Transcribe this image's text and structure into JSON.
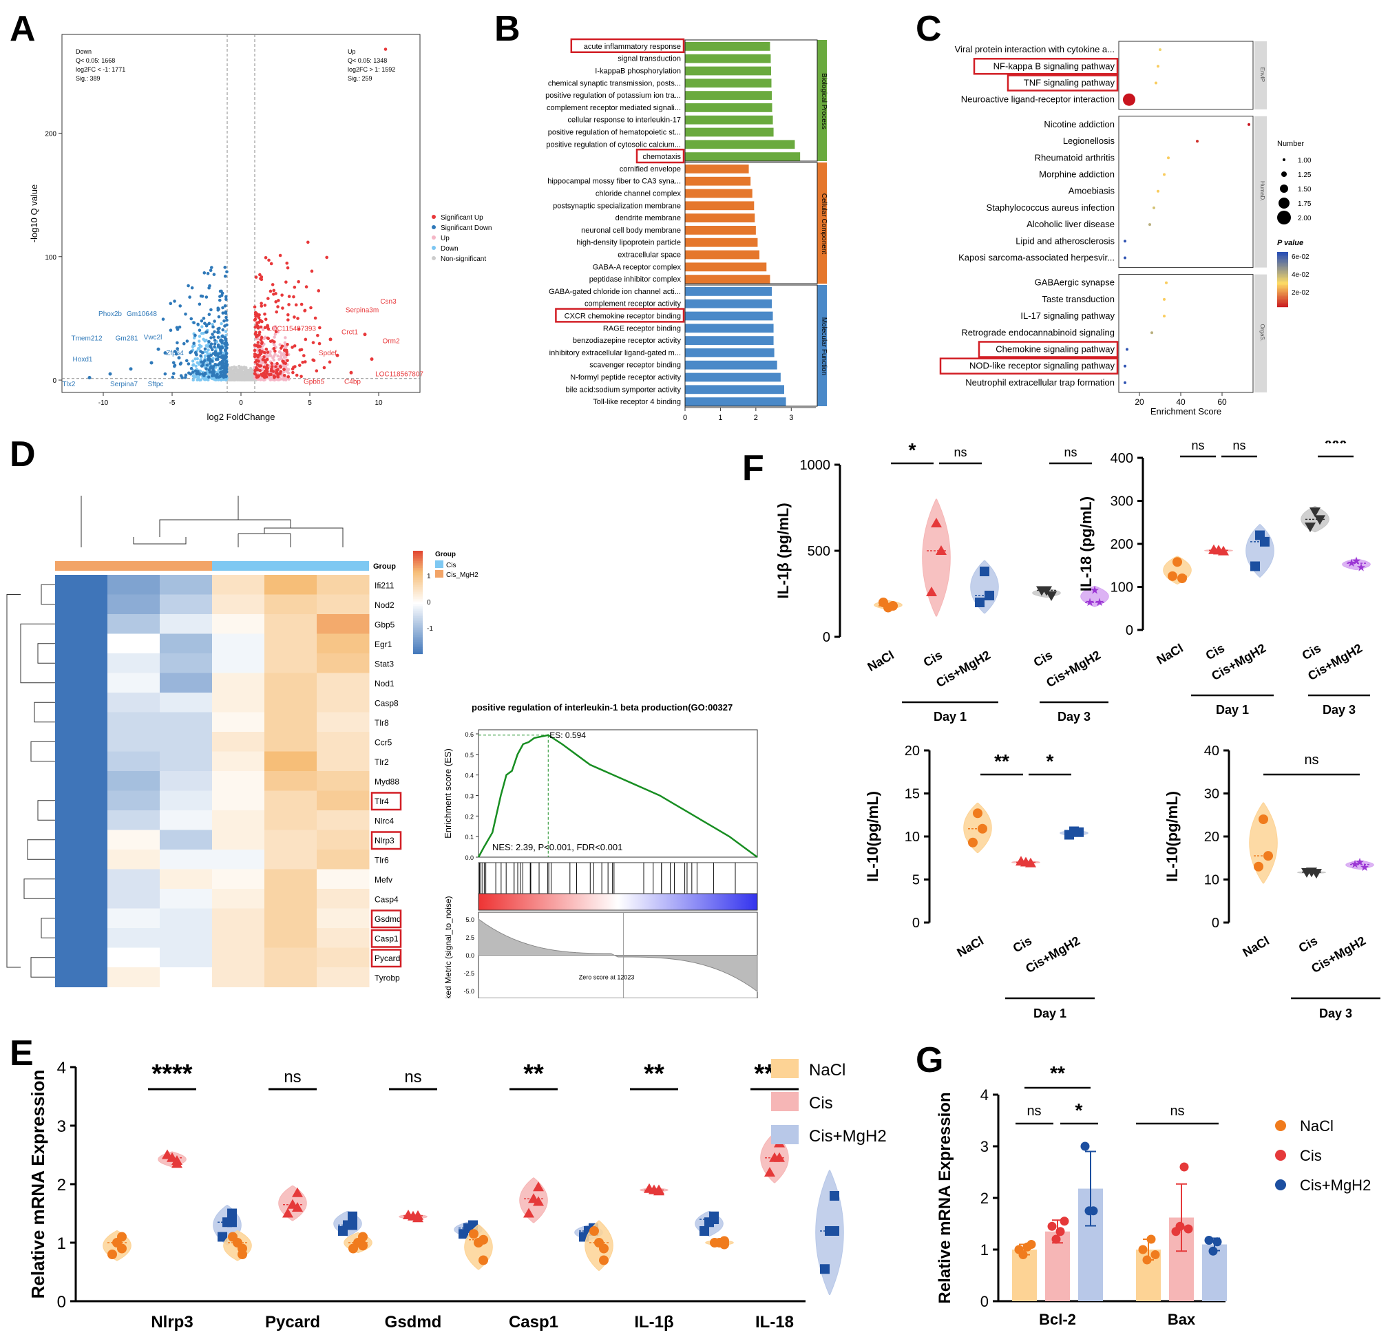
{
  "panels": {
    "A": "A",
    "B": "B",
    "C": "C",
    "D": "D",
    "E": "E",
    "F": "F",
    "G": "G"
  },
  "colors": {
    "up": "#e8383a",
    "down": "#2f79b9",
    "upLight": "#f4b6c6",
    "downLight": "#7cc6f2",
    "ns": "#cccccc",
    "bp": "#6aaa3e",
    "cc": "#e5772c",
    "mf": "#4a89c8",
    "naclFill": "#fdd395",
    "naclDot": "#f07b1d",
    "cisFill": "#f6b6b6",
    "cisDot": "#e5393a",
    "mghFill": "#b8c8e8",
    "mghDot": "#1c4fa0",
    "mgh3Fill": "#d6a6f2",
    "mgh3Dot": "#9b36d4",
    "highlight": "#d21e25"
  },
  "chart_data": [
    {
      "type": "scatter",
      "name": "A volcano",
      "xlabel": "log2 FoldChange",
      "ylabel": "-log10 Q value",
      "xlim": [
        -13,
        13
      ],
      "ylim": [
        -10,
        280
      ],
      "xticks": [
        -10,
        -5,
        0,
        5,
        10
      ],
      "yticks": [
        0,
        100,
        200
      ],
      "down_text": [
        "Down",
        "Q< 0.05: 1668",
        "log2FC < -1: 1771",
        "Sig.: 389"
      ],
      "up_text": [
        "Up",
        "Q< 0.05: 1348",
        "log2FC > 1: 1592",
        "Sig.: 259"
      ],
      "legend": [
        "Significant Up",
        "Significant Down",
        "Up",
        "Down",
        "Non-significant"
      ],
      "down_labels": [
        "Phox2b",
        "Gm10648",
        "Tmem212",
        "Gm281",
        "Vwc2l",
        "Hoxd1",
        "Zfp64",
        "Tlx2",
        "Serpina7",
        "Sftpc"
      ],
      "up_labels": [
        "Csn3",
        "Serpina3m",
        "Orm2",
        "LOC115487393",
        "Crct1",
        "Spdef",
        "LOC118567807",
        "Gpbb5",
        "C4bp"
      ],
      "highlight_points": [
        [
          -11,
          2
        ],
        [
          -9.5,
          5
        ],
        [
          -8,
          9
        ],
        [
          -6.5,
          14
        ],
        [
          -6,
          25
        ],
        [
          -5.5,
          22
        ],
        [
          -4.5,
          18
        ],
        [
          -3,
          5
        ],
        [
          6.5,
          33
        ],
        [
          7,
          20
        ],
        [
          9,
          37
        ],
        [
          9.5,
          17
        ],
        [
          8,
          6
        ]
      ]
    },
    {
      "type": "bar",
      "name": "B GO enrichment",
      "xlabel": "-log10 P value",
      "xlim": [
        0,
        3.5
      ],
      "xticks": [
        0,
        1,
        2,
        3
      ],
      "groups": [
        "Biological Process",
        "Cellular Component",
        "Molecular Function"
      ],
      "categories": [
        "acute inflammatory response",
        "signal transduction",
        "I-kappaB phosphorylation",
        "chemical synaptic transmission, posts...",
        "positive regulation of potassium ion tra...",
        "complement receptor mediated signali...",
        "cellular response to interleukin-17",
        "positive regulation of hematopoietic st...",
        "positive regulation of cytosolic calcium...",
        "chemotaxis",
        "cornified envelope",
        "hippocampal mossy fiber to CA3 syna...",
        "chloride channel complex",
        "postsynaptic specialization membrane",
        "dendrite membrane",
        "neuronal cell body membrane",
        "high-density lipoprotein particle",
        "extracellular space",
        "GABA-A receptor complex",
        "peptidase inhibitor complex",
        "GABA-gated chloride ion channel acti...",
        "complement receptor activity",
        "CXCR chemokine receptor binding",
        "RAGE receptor binding",
        "benzodiazepine receptor activity",
        "inhibitory extracellular ligand-gated m...",
        "scavenger receptor binding",
        "N-formyl peptide receptor activity",
        "bile acid:sodium symporter activity",
        "Toll-like receptor 4 binding"
      ],
      "values": [
        2.4,
        2.42,
        2.43,
        2.44,
        2.45,
        2.46,
        2.48,
        2.5,
        3.1,
        3.25,
        1.8,
        1.85,
        1.9,
        1.95,
        1.97,
        2.0,
        2.05,
        2.1,
        2.3,
        2.4,
        2.45,
        2.45,
        2.48,
        2.5,
        2.5,
        2.52,
        2.6,
        2.7,
        2.8,
        2.85
      ],
      "group_index": [
        0,
        0,
        0,
        0,
        0,
        0,
        0,
        0,
        0,
        0,
        1,
        1,
        1,
        1,
        1,
        1,
        1,
        1,
        1,
        1,
        2,
        2,
        2,
        2,
        2,
        2,
        2,
        2,
        2,
        2
      ],
      "highlighted": [
        0,
        9,
        22
      ]
    },
    {
      "type": "scatter",
      "name": "C KEGG enrichment",
      "xlabel": "Enrichment Score",
      "xticks": [
        20,
        40,
        60
      ],
      "xlim": [
        10,
        75
      ],
      "facets": [
        "EnvIP",
        "HumaD.",
        "OrgaS."
      ],
      "categories": [
        "Viral protein interaction with cytokine a...",
        "NF-kappa B signaling pathway",
        "TNF signaling pathway",
        "Neuroactive ligand-receptor interaction",
        "Nicotine addiction",
        "Legionellosis",
        "Rheumatoid arthritis",
        "Morphine addiction",
        "Amoebiasis",
        "Staphylococcus aureus infection",
        "Alcoholic liver disease",
        "Lipid and atherosclerosis",
        "Kaposi sarcoma-associated herpesvir...",
        "GABAergic synapse",
        "Taste transduction",
        "IL-17 signaling pathway",
        "Retrograde endocannabinoid signaling",
        "Chemokine signaling pathway",
        "NOD-like receptor signaling pathway",
        "Neutrophil extracellular trap formation"
      ],
      "x": [
        30,
        29,
        28,
        15,
        73,
        48,
        34,
        32,
        29,
        27,
        25,
        13,
        13,
        33,
        32,
        32,
        26,
        14,
        13,
        13
      ],
      "number": [
        1,
        1,
        1,
        2,
        1,
        1,
        1,
        1,
        1,
        1,
        1,
        1,
        1,
        1,
        1,
        1,
        1,
        1,
        1,
        1
      ],
      "pvalue": [
        0.035,
        0.03,
        0.03,
        0.001,
        0.001,
        0.005,
        0.03,
        0.03,
        0.03,
        0.04,
        0.045,
        0.07,
        0.07,
        0.03,
        0.03,
        0.03,
        0.045,
        0.07,
        0.07,
        0.07
      ],
      "facet_index": [
        0,
        0,
        0,
        0,
        1,
        1,
        1,
        1,
        1,
        1,
        1,
        1,
        1,
        2,
        2,
        2,
        2,
        2,
        2,
        2
      ],
      "highlighted": [
        1,
        2,
        17,
        18
      ],
      "legend_number_title": "Number",
      "legend_numbers": [
        "1.00",
        "1.25",
        "1.50",
        "1.75",
        "2.00"
      ],
      "legend_p_title": "P value",
      "legend_p": [
        "6e-02",
        "4e-02",
        "2e-02"
      ]
    },
    {
      "type": "heatmap",
      "name": "D heatmap",
      "rows": [
        "Ifi211",
        "Nod2",
        "Gbp5",
        "Egr1",
        "Stat3",
        "Nod1",
        "Casp8",
        "Tlr8",
        "Ccr5",
        "Tlr2",
        "Myd88",
        "Tlr4",
        "Nlrc4",
        "Nlrp3",
        "Tlr6",
        "Mefv",
        "Casp4",
        "Gsdmd",
        "Casp1",
        "Pycard",
        "Tyrobp"
      ],
      "highlighted_rows": [
        11,
        13,
        17,
        18,
        19
      ],
      "columns": 6,
      "group_label": "Group",
      "groups": [
        "Cis",
        "Cis_MgH2"
      ],
      "col_groups": [
        1,
        1,
        1,
        0,
        0,
        0
      ],
      "scale_ticks": [
        "1",
        "0",
        "-1"
      ],
      "values": [
        [
          -1.5,
          -1.0,
          -0.7,
          0.4,
          0.9,
          0.6
        ],
        [
          -1.5,
          -0.9,
          -0.5,
          0.3,
          0.6,
          0.5
        ],
        [
          -1.5,
          -0.6,
          -0.2,
          0.1,
          0.5,
          1.0
        ],
        [
          -1.5,
          0.0,
          -0.7,
          -0.1,
          0.5,
          0.8
        ],
        [
          -1.5,
          -0.2,
          -0.6,
          -0.1,
          0.5,
          0.7
        ],
        [
          -1.5,
          -0.1,
          -0.8,
          0.2,
          0.6,
          0.4
        ],
        [
          -1.5,
          -0.3,
          -0.2,
          0.2,
          0.6,
          0.4
        ],
        [
          -1.5,
          -0.4,
          -0.4,
          0.1,
          0.6,
          0.3
        ],
        [
          -1.5,
          -0.4,
          -0.4,
          0.3,
          0.6,
          0.4
        ],
        [
          -1.5,
          -0.5,
          -0.4,
          0.2,
          0.9,
          0.4
        ],
        [
          -1.5,
          -0.7,
          -0.3,
          0.1,
          0.7,
          0.6
        ],
        [
          -1.5,
          -0.6,
          -0.2,
          0.1,
          0.5,
          0.7
        ],
        [
          -1.5,
          -0.4,
          -0.1,
          0.2,
          0.5,
          0.4
        ],
        [
          -1.5,
          0.1,
          -0.5,
          0.2,
          0.4,
          0.5
        ],
        [
          -1.5,
          0.2,
          -0.1,
          -0.1,
          0.4,
          0.6
        ],
        [
          -1.5,
          -0.3,
          0.2,
          0.1,
          0.6,
          0.1
        ],
        [
          -1.5,
          -0.3,
          -0.1,
          0.2,
          0.6,
          0.3
        ],
        [
          -1.5,
          -0.1,
          -0.2,
          0.3,
          0.6,
          0.2
        ],
        [
          -1.5,
          -0.2,
          -0.2,
          0.3,
          0.6,
          0.3
        ],
        [
          -1.5,
          0.0,
          -0.2,
          0.3,
          0.5,
          0.4
        ],
        [
          -1.5,
          0.2,
          0.0,
          0.3,
          0.5,
          0.3
        ]
      ]
    },
    {
      "type": "line",
      "name": "D GSEA",
      "title": "positive regulation of interleukin-1 beta production(GO:00327",
      "ylabel": "Enrichment score (ES)",
      "yticks": [
        0.0,
        0.1,
        0.2,
        0.3,
        0.4,
        0.5,
        0.6
      ],
      "es_label": "ES: 0.594",
      "nes_label": "NES: 2.39, P<0.001, FDR<0.001",
      "x": [
        0,
        0.02,
        0.05,
        0.08,
        0.1,
        0.12,
        0.14,
        0.16,
        0.18,
        0.2,
        0.25,
        0.3,
        0.35,
        0.4,
        0.45,
        0.5,
        0.55,
        0.6,
        0.65,
        0.7,
        0.75,
        0.8,
        0.85,
        0.9,
        0.95,
        1.0
      ],
      "y": [
        0,
        0.05,
        0.12,
        0.3,
        0.4,
        0.42,
        0.5,
        0.55,
        0.56,
        0.58,
        0.594,
        0.55,
        0.5,
        0.45,
        0.42,
        0.39,
        0.36,
        0.33,
        0.3,
        0.26,
        0.22,
        0.18,
        0.14,
        0.1,
        0.05,
        0.0
      ],
      "ranked_ylabel": "Ranked Metric (signal_to_noise)",
      "ranked_ticks": [
        "5.0",
        "2.5",
        "0.0",
        "-2.5",
        "-5.0"
      ],
      "zero_label": "Zero score at 12023"
    },
    {
      "type": "bar",
      "name": "E mRNA",
      "ylabel": "Relative mRNA Expression",
      "ylim": [
        0,
        4
      ],
      "yticks": [
        0,
        1,
        2,
        3,
        4
      ],
      "categories": [
        "Nlrp3",
        "Pycard",
        "Gsdmd",
        "Casp1",
        "IL-1β",
        "IL-18"
      ],
      "series": [
        {
          "name": "NaCl",
          "values": [
            [
              1.0,
              0.9,
              0.8,
              1.1
            ],
            [
              1.0,
              0.8,
              1.1,
              0.9
            ],
            [
              1.0,
              0.95,
              0.9,
              1.1
            ],
            [
              1.0,
              0.7,
              1.15,
              1.05
            ],
            [
              1.0,
              0.7,
              1.2,
              0.9
            ],
            [
              1.0,
              0.97,
              1.0,
              1.03
            ]
          ]
        },
        {
          "name": "Cis",
          "values": [
            [
              2.45,
              2.4,
              2.5,
              2.35
            ],
            [
              1.65,
              1.85,
              1.5,
              1.6
            ],
            [
              1.45,
              1.42,
              1.47,
              1.46
            ],
            [
              1.75,
              1.95,
              1.5,
              1.7
            ],
            [
              1.9,
              1.88,
              1.92,
              1.9
            ],
            [
              2.45,
              2.7,
              2.2,
              2.45
            ]
          ]
        },
        {
          "name": "Cis+MgH2",
          "values": [
            [
              1.35,
              1.5,
              1.1,
              1.35
            ],
            [
              1.3,
              1.45,
              1.2,
              1.3
            ],
            [
              1.25,
              1.3,
              1.15,
              1.25
            ],
            [
              1.2,
              1.2,
              1.1,
              1.25
            ],
            [
              1.35,
              1.45,
              1.2,
              1.4
            ],
            [
              1.2,
              1.8,
              0.55,
              1.2
            ]
          ]
        }
      ],
      "significance": [
        "****",
        "ns",
        "ns",
        "**",
        "**",
        "****"
      ],
      "legend": [
        "NaCl",
        "Cis",
        "Cis+MgH2"
      ]
    },
    {
      "type": "scatter",
      "name": "F cytokines",
      "subplots": [
        {
          "ylabel": "IL-1β  (pg/mL)",
          "ylim": [
            0,
            1000
          ],
          "yticks": [
            0,
            500,
            1000
          ],
          "groups": [
            "NaCl",
            "Cis",
            "Cis+MgH2",
            "Cis",
            "Cis+MgH2"
          ],
          "values": [
            [
              170,
              180,
              200
            ],
            [
              660,
              500,
              260
            ],
            [
              380,
              240,
              200
            ],
            [
              270,
              240,
              270
            ],
            [
              270,
              200,
              200
            ]
          ],
          "brackets": [
            "*",
            "ns",
            "ns"
          ],
          "days": [
            "Day 1",
            "Day 3"
          ]
        },
        {
          "ylabel": "IL-18 (pg/mL)",
          "ylim": [
            0,
            400
          ],
          "yticks": [
            0,
            100,
            200,
            300,
            400
          ],
          "groups": [
            "NaCl",
            "Cis",
            "Cis+MgH2",
            "Cis",
            "Cis+MgH2"
          ],
          "values": [
            [
              158,
              120,
              125
            ],
            [
              185,
              183,
              186
            ],
            [
              220,
              205,
              148
            ],
            [
              275,
              257,
              240
            ],
            [
              160,
              145,
              155
            ]
          ],
          "brackets": [
            "ns",
            "ns",
            "***"
          ],
          "days": [
            "Day 1",
            "Day 3"
          ]
        },
        {
          "ylabel": "IL-10(pg/mL)",
          "ylim": [
            0,
            20
          ],
          "yticks": [
            0,
            5,
            10,
            15,
            20
          ],
          "groups": [
            "NaCl",
            "Cis",
            "Cis+MgH2"
          ],
          "values": [
            [
              12.7,
              10.9,
              9.3
            ],
            [
              7.0,
              6.9,
              7.1
            ],
            [
              10.6,
              10.5,
              10.2
            ]
          ],
          "brackets": [
            "**",
            "*"
          ],
          "days": [
            "Day 1"
          ]
        },
        {
          "ylabel": "IL-10(pg/mL)",
          "ylim": [
            0,
            40
          ],
          "yticks": [
            0,
            10,
            20,
            30,
            40
          ],
          "groups": [
            "NaCl",
            "Cis",
            "Cis+MgH2"
          ],
          "values": [
            [
              24,
              15.5,
              13
            ],
            [
              11.8,
              11.5,
              11.7
            ],
            [
              14,
              12.8,
              13.5
            ]
          ],
          "brackets": [
            "ns"
          ],
          "days": [
            "Day 3"
          ]
        }
      ]
    },
    {
      "type": "bar",
      "name": "G mRNA",
      "ylabel": "Relative mRNA Expression",
      "ylim": [
        0,
        4
      ],
      "yticks": [
        0,
        1,
        2,
        3,
        4
      ],
      "categories": [
        "Bcl-2",
        "Bax"
      ],
      "series": [
        {
          "name": "NaCl",
          "means": [
            1.0,
            1.0
          ],
          "sd": [
            0.1,
            0.2
          ],
          "points": [
            [
              1.0,
              0.9,
              1.05,
              1.1
            ],
            [
              1.0,
              0.8,
              1.2,
              0.9
            ]
          ]
        },
        {
          "name": "Cis",
          "means": [
            1.35,
            1.62
          ],
          "sd": [
            0.22,
            0.65
          ],
          "points": [
            [
              1.45,
              1.2,
              1.35,
              1.55
            ],
            [
              1.35,
              1.45,
              2.6,
              1.4
            ]
          ]
        },
        {
          "name": "Cis+MgH2",
          "means": [
            2.18,
            1.1
          ],
          "sd": [
            0.72,
            0.12
          ],
          "points": [
            [
              3.0,
              1.75,
              1.75
            ],
            [
              1.18,
              0.97,
              1.15
            ]
          ]
        }
      ],
      "significance": [
        "**",
        "ns",
        "*",
        "ns"
      ],
      "legend": [
        "NaCl",
        "Cis",
        "Cis+MgH2"
      ]
    }
  ]
}
